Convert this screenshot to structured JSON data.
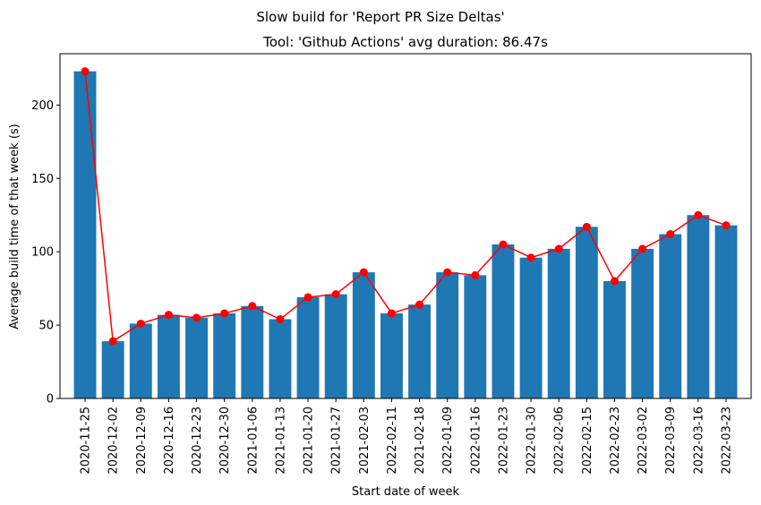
{
  "chart_data": {
    "type": "bar",
    "suptitle": "Slow build for 'Report PR Size Deltas'",
    "title": "Tool: 'Github Actions' avg duration: 86.47s",
    "xlabel": "Start date of week",
    "ylabel": "Average build time of that week (s)",
    "ylim": [
      0,
      235
    ],
    "yticks": [
      0,
      50,
      100,
      150,
      200
    ],
    "categories": [
      "2020-11-25",
      "2020-12-02",
      "2020-12-09",
      "2020-12-16",
      "2020-12-23",
      "2020-12-30",
      "2021-01-06",
      "2021-01-13",
      "2021-01-20",
      "2021-01-27",
      "2021-02-03",
      "2022-02-11",
      "2021-02-18",
      "2022-01-09",
      "2022-01-16",
      "2022-01-23",
      "2022-01-30",
      "2022-02-06",
      "2022-02-15",
      "2022-02-23",
      "2022-03-02",
      "2022-03-09",
      "2022-03-16",
      "2022-03-23"
    ],
    "values": [
      223,
      39,
      51,
      57,
      55,
      58,
      63,
      54,
      69,
      71,
      86,
      58,
      64,
      86,
      84,
      105,
      96,
      102,
      117,
      80,
      102,
      112,
      125,
      118
    ],
    "colors": {
      "bar": "#1f77b4",
      "line": "#ff0000",
      "marker": "#ff0000"
    },
    "grid": false,
    "legend": "none"
  }
}
